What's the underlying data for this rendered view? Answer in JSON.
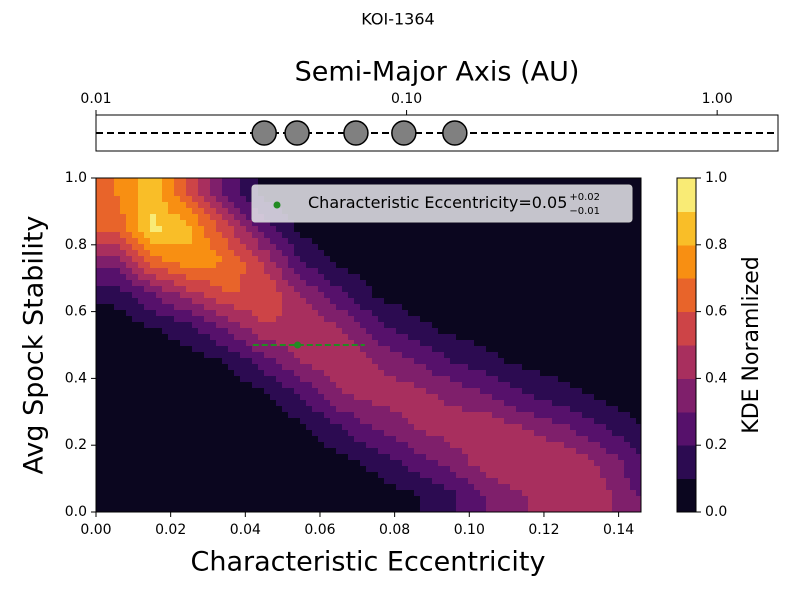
{
  "title": "KOI-1364",
  "chart_data": [
    {
      "type": "scatter",
      "xlabel": "Semi-Major Axis (AU)",
      "xscale": "log",
      "xlim": [
        0.01,
        1.57
      ],
      "xticks": [
        0.01,
        {
          "value": 0.1,
          "label": "0.10"
        },
        {
          "value": 1,
          "label": "1.00"
        }
      ],
      "x": [
        0.0348,
        0.0444,
        0.0687,
        0.098,
        0.143
      ],
      "color": "#808080"
    },
    {
      "type": "contour",
      "xlabel": "Characteristic Eccentricity",
      "ylabel": "Avg Spock Stability",
      "xlim": [
        0,
        0.146
      ],
      "ylim": [
        0,
        1
      ],
      "xticks": [
        {
          "value": 0,
          "label": "0.00"
        },
        {
          "value": 0.02,
          "label": "0.02"
        },
        {
          "value": 0.04,
          "label": "0.04"
        },
        {
          "value": 0.06,
          "label": "0.06"
        },
        {
          "value": 0.08,
          "label": "0.08"
        },
        {
          "value": 0.1,
          "label": "0.10"
        },
        {
          "value": 0.12,
          "label": "0.12"
        },
        {
          "value": 0.14,
          "label": "0.14"
        }
      ],
      "yticks": [
        {
          "value": 0,
          "label": "0.0"
        },
        {
          "value": 0.2,
          "label": "0.2"
        },
        {
          "value": 0.4,
          "label": "0.4"
        },
        {
          "value": 0.6,
          "label": "0.6"
        },
        {
          "value": 0.8,
          "label": "0.8"
        },
        {
          "value": 1,
          "label": "1.0"
        }
      ],
      "x": [
        0.005,
        0.015,
        0.025,
        0.035,
        0.045,
        0.055,
        0.065,
        0.075,
        0.085,
        0.095,
        0.105,
        0.115,
        0.125,
        0.135,
        0.145
      ],
      "y": [
        0.05,
        0.15,
        0.25,
        0.35,
        0.45,
        0.55,
        0.65,
        0.75,
        0.85,
        0.95
      ],
      "z": [
        [
          0,
          0,
          0,
          0,
          0,
          0,
          0.01,
          0.04,
          0.09,
          0.17,
          0.31,
          0.4,
          0.46,
          0.44,
          0.3
        ],
        [
          0,
          0,
          0,
          0,
          0,
          0.02,
          0.06,
          0.14,
          0.24,
          0.34,
          0.47,
          0.5,
          0.48,
          0.39,
          0.23
        ],
        [
          0,
          0,
          0,
          0,
          0.02,
          0.07,
          0.19,
          0.31,
          0.4,
          0.45,
          0.47,
          0.4,
          0.32,
          0.22,
          0.11
        ],
        [
          0,
          0,
          0.01,
          0.02,
          0.08,
          0.2,
          0.38,
          0.44,
          0.44,
          0.38,
          0.31,
          0.2,
          0.14,
          0.08,
          0.04
        ],
        [
          0.01,
          0.02,
          0.04,
          0.11,
          0.25,
          0.4,
          0.5,
          0.4,
          0.31,
          0.2,
          0.13,
          0.07,
          0.04,
          0.02,
          0
        ],
        [
          0.03,
          0.09,
          0.17,
          0.32,
          0.48,
          0.5,
          0.42,
          0.24,
          0.14,
          0.07,
          0.04,
          0.02,
          0.01,
          0,
          0
        ],
        [
          0.13,
          0.29,
          0.45,
          0.59,
          0.6,
          0.4,
          0.23,
          0.09,
          0.04,
          0.02,
          0.01,
          0,
          0,
          0,
          0
        ],
        [
          0.34,
          0.66,
          0.77,
          0.7,
          0.48,
          0.2,
          0.08,
          0.02,
          0.01,
          0,
          0,
          0,
          0,
          0,
          0
        ],
        [
          0.61,
          0.93,
          0.83,
          0.53,
          0.25,
          0.07,
          0.02,
          0,
          0,
          0,
          0,
          0,
          0,
          0,
          0
        ],
        [
          0.69,
          0.86,
          0.59,
          0.26,
          0.08,
          0.02,
          0,
          0,
          0,
          0,
          0,
          0,
          0,
          0,
          0
        ]
      ],
      "levels": [
        0,
        0.1,
        0.2,
        0.3,
        0.4,
        0.5,
        0.6,
        0.7,
        0.8,
        0.9,
        1
      ],
      "colormap": [
        "#000004",
        "#160b39",
        "#420a68",
        "#6a176e",
        "#932667",
        "#bc3754",
        "#dd513a",
        "#f37819",
        "#fca50a",
        "#f6d746",
        "#fcffa4"
      ],
      "colorbar": {
        "label": "KDE Noramlized",
        "lim": [
          0,
          1
        ],
        "ticks": [
          {
            "value": 0,
            "label": "0.0"
          },
          {
            "value": 0.2,
            "label": "0.2"
          },
          {
            "value": 0.4,
            "label": "0.4"
          },
          {
            "value": 0.6,
            "label": "0.6"
          },
          {
            "value": 0.8,
            "label": "0.8"
          },
          {
            "value": 1,
            "label": "1.0"
          }
        ]
      },
      "point": {
        "label": "Characteristic Eccentricity=",
        "x": 0.054,
        "y": 0.5,
        "x_err_minus": 0.012,
        "x_err_plus": 0.018,
        "value_label": "0.05",
        "err_plus_label": "+0.02",
        "err_minus_label": "−0.01",
        "color": "#228b22"
      }
    }
  ]
}
